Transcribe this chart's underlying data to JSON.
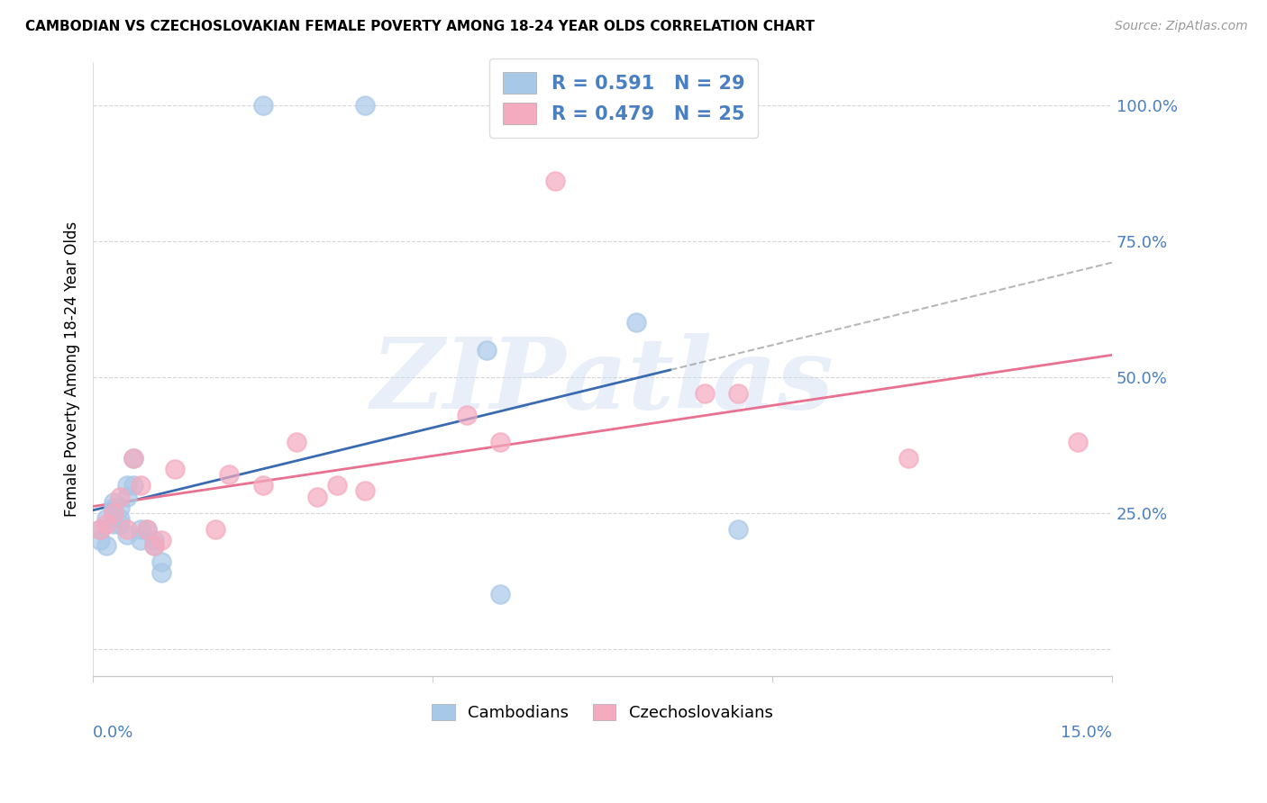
{
  "title": "CAMBODIAN VS CZECHOSLOVAKIAN FEMALE POVERTY AMONG 18-24 YEAR OLDS CORRELATION CHART",
  "source": "Source: ZipAtlas.com",
  "ylabel": "Female Poverty Among 18-24 Year Olds",
  "xlim": [
    0.0,
    0.15
  ],
  "ylim": [
    -0.05,
    1.08
  ],
  "cambodian_R": 0.591,
  "cambodian_N": 29,
  "czechoslovakian_R": 0.479,
  "czechoslovakian_N": 25,
  "cambodian_color": "#a8c8e8",
  "czechoslovakian_color": "#f4aabf",
  "cambodian_line_color": "#3a6aaf",
  "czechoslovakian_line_color": "#e87090",
  "cambodian_x": [
    0.001,
    0.001,
    0.002,
    0.002,
    0.003,
    0.003,
    0.003,
    0.003,
    0.004,
    0.004,
    0.004,
    0.005,
    0.005,
    0.005,
    0.006,
    0.006,
    0.007,
    0.007,
    0.008,
    0.009,
    0.009,
    0.01,
    0.01,
    0.025,
    0.04,
    0.058,
    0.06,
    0.08,
    0.095
  ],
  "cambodian_y": [
    0.2,
    0.22,
    0.19,
    0.24,
    0.23,
    0.26,
    0.27,
    0.25,
    0.24,
    0.23,
    0.26,
    0.28,
    0.3,
    0.21,
    0.3,
    0.35,
    0.22,
    0.2,
    0.22,
    0.19,
    0.2,
    0.16,
    0.14,
    1.0,
    1.0,
    0.55,
    0.1,
    0.6,
    0.22
  ],
  "czechoslovakian_x": [
    0.001,
    0.002,
    0.003,
    0.004,
    0.005,
    0.006,
    0.007,
    0.008,
    0.009,
    0.01,
    0.012,
    0.018,
    0.02,
    0.025,
    0.03,
    0.033,
    0.036,
    0.04,
    0.055,
    0.06,
    0.068,
    0.09,
    0.095,
    0.12,
    0.145
  ],
  "czechoslovakian_y": [
    0.22,
    0.23,
    0.25,
    0.28,
    0.22,
    0.35,
    0.3,
    0.22,
    0.19,
    0.2,
    0.33,
    0.22,
    0.32,
    0.3,
    0.38,
    0.28,
    0.3,
    0.29,
    0.43,
    0.38,
    0.86,
    0.47,
    0.47,
    0.35,
    0.38
  ],
  "ytick_vals": [
    0.0,
    0.25,
    0.5,
    0.75,
    1.0
  ],
  "ytick_labels": [
    "",
    "25.0%",
    "50.0%",
    "75.0%",
    "100.0%"
  ],
  "xtick_vals": [
    0.0,
    0.05,
    0.1,
    0.15
  ],
  "watermark_text": "ZIPatlas"
}
